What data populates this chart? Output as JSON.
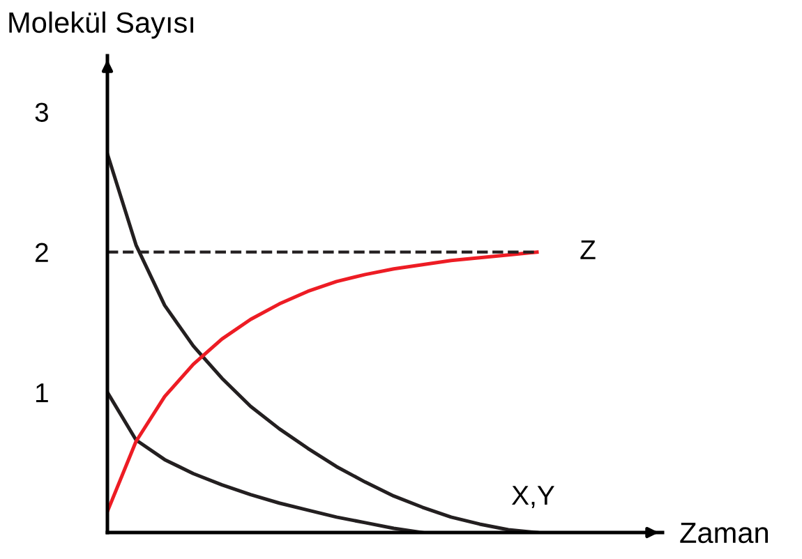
{
  "chart_data": {
    "type": "line",
    "xlabel": "Zaman",
    "ylabel": "Molekül Sayısı",
    "categories": [
      null,
      null,
      null,
      null,
      null,
      null,
      null,
      null,
      null,
      null,
      null,
      null,
      null,
      null,
      null,
      null
    ],
    "series": [
      {
        "name": "X,Y",
        "color": "#231f20",
        "values": [
          2.7,
          2.05,
          1.62,
          1.33,
          1.1,
          0.9,
          0.74,
          0.6,
          0.47,
          0.36,
          0.26,
          0.18,
          0.11,
          0.06,
          0.02,
          0
        ]
      },
      {
        "color": "#231f20",
        "values": [
          1.0,
          0.66,
          0.52,
          0.42,
          0.34,
          0.27,
          0.21,
          0.16,
          0.11,
          0.07,
          0.03,
          0,
          null,
          null,
          null,
          null
        ]
      },
      {
        "name": "Z",
        "color": "#ed1c24",
        "values": [
          0.15,
          0.65,
          0.97,
          1.2,
          1.38,
          1.52,
          1.63,
          1.72,
          1.79,
          1.84,
          1.88,
          1.91,
          1.94,
          1.96,
          1.98,
          2.0
        ]
      }
    ],
    "ylim": [
      0,
      3.4
    ],
    "yticks": [
      1,
      2,
      3
    ],
    "ref_lines": [
      {
        "axis": "y",
        "value": 2,
        "color": "#231f20",
        "line_style": "dashed"
      }
    ],
    "marker": "none",
    "line_style": "solid",
    "grid": false,
    "legend": false
  }
}
